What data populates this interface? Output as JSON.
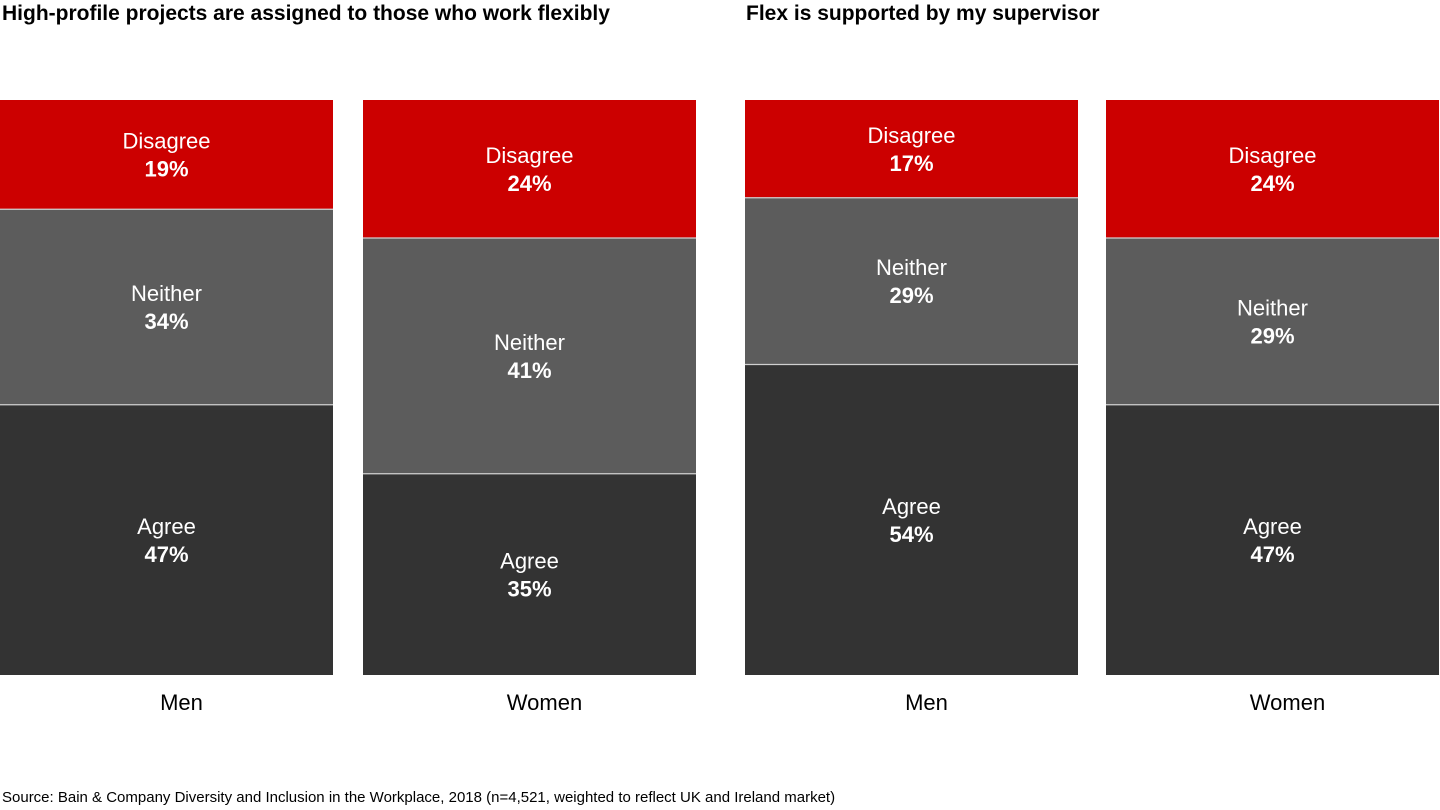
{
  "source": "Source: Bain & Company Diversity and Inclusion in the Workplace, 2018 (n=4,521, weighted to reflect UK and Ireland market)",
  "colors": {
    "Disagree": "#cc0000",
    "Neither": "#5c5c5c",
    "Agree": "#333333"
  },
  "chart_data": [
    {
      "type": "bar",
      "stacked": true,
      "title": "High-profile projects are assigned to those who work flexibly",
      "categories": [
        "Men",
        "Women"
      ],
      "series": [
        {
          "name": "Disagree",
          "values": [
            19,
            24
          ]
        },
        {
          "name": "Neither",
          "values": [
            34,
            41
          ]
        },
        {
          "name": "Agree",
          "values": [
            47,
            35
          ]
        }
      ],
      "ylim": [
        0,
        100
      ]
    },
    {
      "type": "bar",
      "stacked": true,
      "title": "Flex is supported by my supervisor",
      "categories": [
        "Men",
        "Women"
      ],
      "series": [
        {
          "name": "Disagree",
          "values": [
            17,
            24
          ]
        },
        {
          "name": "Neither",
          "values": [
            29,
            29
          ]
        },
        {
          "name": "Agree",
          "values": [
            54,
            47
          ]
        }
      ],
      "ylim": [
        0,
        100
      ]
    }
  ]
}
